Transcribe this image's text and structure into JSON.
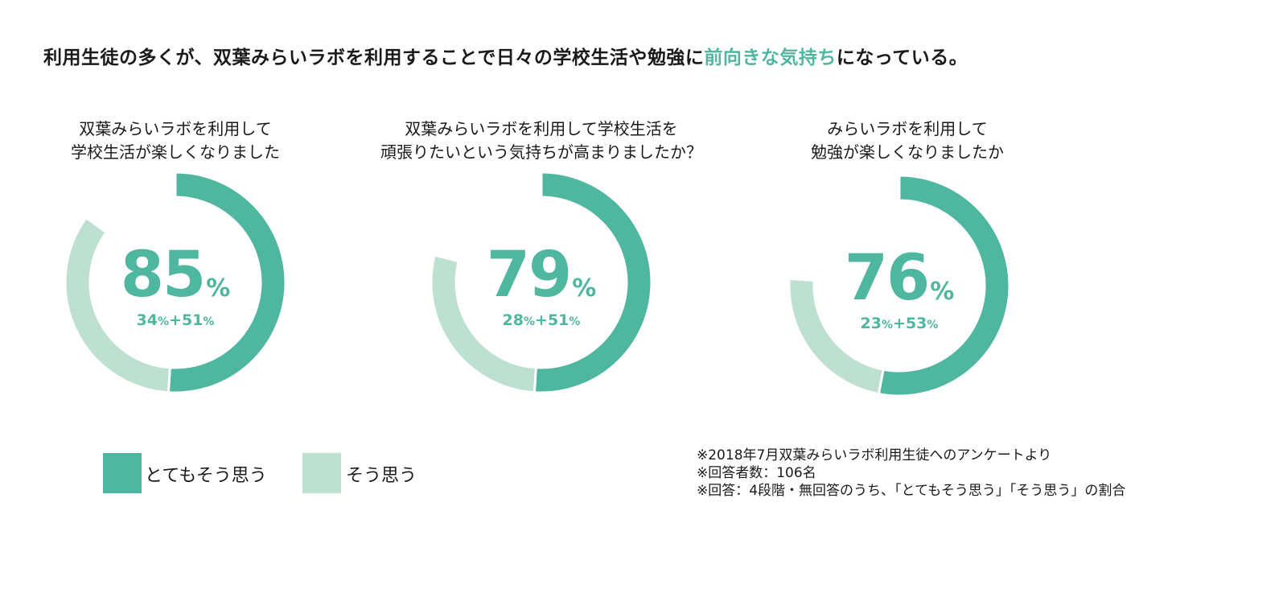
{
  "headline": {
    "prefix": "利用生徒の多くが、双葉みらいラボを利用することで日々の学校生活や勉強に",
    "highlight": "前向きな気持ち",
    "suffix": "になっている。"
  },
  "colors": {
    "dark": "#4fb6a0",
    "light": "#bde0d0"
  },
  "chart_data": [
    {
      "type": "pie",
      "title_lines": [
        "双葉みらいラボを利用して",
        "学校生活が楽しくなりました"
      ],
      "total": "85",
      "total_unit": "%",
      "breakdown": {
        "a": "34",
        "b": "51",
        "unit": "%",
        "plus": "+"
      },
      "values": [
        51,
        34,
        15
      ]
    },
    {
      "type": "pie",
      "title_lines": [
        "双葉みらいラボを利用して学校生活を",
        "頑張りたいという気持ちが高まりましたか？"
      ],
      "total": "79",
      "total_unit": "%",
      "breakdown": {
        "a": "28",
        "b": "51",
        "unit": "%",
        "plus": "+"
      },
      "values": [
        51,
        28,
        21
      ]
    },
    {
      "type": "pie",
      "title_lines": [
        "みらいラボを利用して",
        "勉強が楽しくなりましたか"
      ],
      "total": "76",
      "total_unit": "%",
      "breakdown": {
        "a": "23",
        "b": "53",
        "unit": "%",
        "plus": "+"
      },
      "values": [
        53,
        23,
        24
      ]
    }
  ],
  "legend": {
    "strong": "とてもそう思う",
    "agree": "そう思う"
  },
  "footnotes": [
    "※2018年7月双葉みらいラボ利用生徒へのアンケートより",
    "※回答者数：106名",
    "※回答：4段階・無回答のうち、「とてもそう思う」「そう思う」の割合"
  ]
}
